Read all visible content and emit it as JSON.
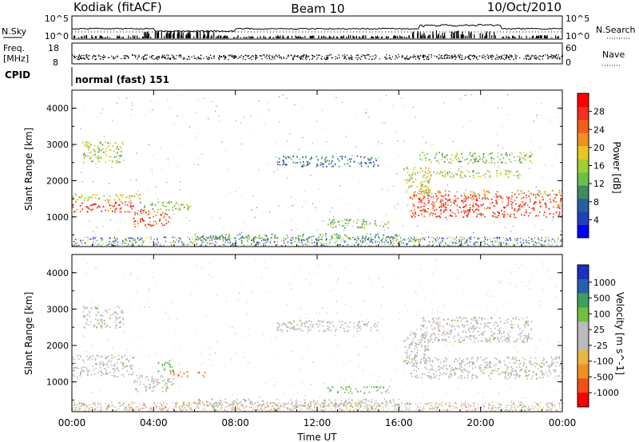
{
  "header": {
    "station": "Kodiak (fitACF)",
    "beam": "Beam 10",
    "date": "10/Oct/2010"
  },
  "noise_panel": {
    "left_label": "N.Sky",
    "right_label": "N.Search",
    "left_ticks": [
      "10^5",
      "10^0"
    ],
    "right_ticks": [
      "10^5",
      "10^0"
    ]
  },
  "freq_panel": {
    "label_line1": "Freq.",
    "label_line2": "[MHz]",
    "left_ticks": [
      "18",
      "8"
    ],
    "right_label": "Nave",
    "right_ticks": [
      "60",
      "0"
    ]
  },
  "cpid": {
    "label": "CPID",
    "value": "normal (fast) 151"
  },
  "colors": {
    "power_scale": [
      "#0000ff",
      "#1f3fbf",
      "#2a5f9f",
      "#3f8a5f",
      "#6ac04a",
      "#9fd030",
      "#e8c820",
      "#f09020",
      "#f06018",
      "#f03020",
      "#ff0000"
    ],
    "velocity_scale": [
      "#ff0000",
      "#f05018",
      "#f09020",
      "#e8b840",
      "#bbbbbb",
      "#bbbbbb",
      "#70c040",
      "#3f9f5f",
      "#2a5fb0",
      "#1f2fbf"
    ],
    "ground_scatter": "#b8b8b8"
  },
  "chart_data": [
    {
      "type": "heatmap",
      "name": "Power",
      "ylabel": "Slant Range [km]",
      "yticks": [
        "4000",
        "3000",
        "2000",
        "1000"
      ],
      "ylim": [
        180,
        4500
      ],
      "xlim": [
        0,
        24
      ],
      "colorbar_label": "Power [dB]",
      "colorbar_ticks": [
        "28",
        "24",
        "20",
        "16",
        "12",
        "8",
        "4"
      ],
      "colorbar_range": [
        0,
        32
      ],
      "echo_regions": [
        {
          "t0": 0.0,
          "t1": 3.0,
          "r0": 1150,
          "r1": 1450,
          "level": 27
        },
        {
          "t0": 0.0,
          "t1": 3.3,
          "r0": 1450,
          "r1": 1650,
          "level": 18
        },
        {
          "t0": 3.0,
          "t1": 4.8,
          "r0": 750,
          "r1": 1200,
          "level": 26
        },
        {
          "t0": 3.3,
          "t1": 5.8,
          "r0": 1200,
          "r1": 1450,
          "level": 14
        },
        {
          "t0": 0.5,
          "t1": 2.5,
          "r0": 2500,
          "r1": 3100,
          "level": 15
        },
        {
          "t0": 6.0,
          "t1": 16.0,
          "r0": 350,
          "r1": 550,
          "level": 12
        },
        {
          "t0": 12.5,
          "t1": 15.5,
          "r0": 700,
          "r1": 950,
          "level": 14
        },
        {
          "t0": 10.0,
          "t1": 15.0,
          "r0": 2400,
          "r1": 2700,
          "level": 8
        },
        {
          "t0": 16.2,
          "t1": 17.5,
          "r0": 1600,
          "r1": 2400,
          "level": 18
        },
        {
          "t0": 16.5,
          "t1": 24.0,
          "r0": 1000,
          "r1": 1650,
          "level": 27
        },
        {
          "t0": 17.0,
          "t1": 22.0,
          "r0": 2100,
          "r1": 2300,
          "level": 16
        },
        {
          "t0": 17.0,
          "t1": 22.5,
          "r0": 2500,
          "r1": 2800,
          "level": 14
        },
        {
          "t0": 17.0,
          "t1": 24.0,
          "r0": 1650,
          "r1": 1750,
          "level": 20
        }
      ]
    },
    {
      "type": "heatmap",
      "name": "Velocity",
      "ylabel": "Slant Range [km]",
      "yticks": [
        "4000",
        "3000",
        "2000",
        "1000"
      ],
      "ylim": [
        180,
        4500
      ],
      "xlim": [
        0,
        24
      ],
      "xlabel": "Time UT",
      "xticks": [
        "00:00",
        "04:00",
        "08:00",
        "12:00",
        "16:00",
        "20:00",
        "00:00"
      ],
      "colorbar_label": "Velocity [m s^-1]",
      "colorbar_ticks": [
        "1000",
        "500",
        "100",
        "25",
        "-25",
        "-100",
        "-500",
        "-1000"
      ],
      "echo_regions": [
        {
          "t0": 0.0,
          "t1": 3.0,
          "r0": 1150,
          "r1": 1750,
          "gs": true
        },
        {
          "t0": 3.0,
          "t1": 5.0,
          "r0": 750,
          "r1": 1200,
          "gs": true
        },
        {
          "t0": 4.2,
          "t1": 5.0,
          "r0": 1300,
          "r1": 1600,
          "v": 200
        },
        {
          "t0": 4.8,
          "t1": 6.5,
          "r0": 1150,
          "r1": 1300,
          "v": -200
        },
        {
          "t0": 0.5,
          "t1": 2.5,
          "r0": 2500,
          "r1": 3100,
          "gs": true
        },
        {
          "t0": 6.0,
          "t1": 16.0,
          "r0": 350,
          "r1": 550,
          "gs": true
        },
        {
          "t0": 12.5,
          "t1": 15.5,
          "r0": 700,
          "r1": 900,
          "v": 300
        },
        {
          "t0": 10.0,
          "t1": 15.0,
          "r0": 2400,
          "r1": 2700,
          "gs": true
        },
        {
          "t0": 16.2,
          "t1": 17.5,
          "r0": 1500,
          "r1": 2400,
          "gs": true
        },
        {
          "t0": 16.5,
          "t1": 24.0,
          "r0": 1100,
          "r1": 1700,
          "gs": true
        },
        {
          "t0": 17.0,
          "t1": 22.5,
          "r0": 2100,
          "r1": 2800,
          "gs": true
        }
      ]
    }
  ]
}
